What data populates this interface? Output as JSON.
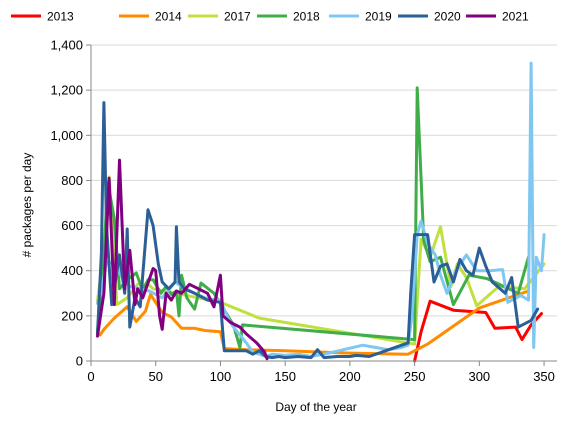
{
  "chart_data": {
    "type": "line",
    "title": "",
    "xlabel": "Day of the year",
    "ylabel": "# packages per day",
    "xlim": [
      0,
      360
    ],
    "ylim": [
      0,
      1400
    ],
    "x_ticks": [
      0,
      50,
      100,
      150,
      200,
      250,
      300,
      350
    ],
    "x_tick_labels": [
      "0",
      "50",
      "100",
      "150",
      "200",
      "250",
      "300",
      "350"
    ],
    "y_ticks": [
      0,
      200,
      400,
      600,
      800,
      1000,
      1200,
      1400
    ],
    "y_tick_labels": [
      "0",
      "200",
      "400",
      "600",
      "800",
      "1,000",
      "1,200",
      "1,400"
    ],
    "grid": "horizontal",
    "legend_position": "top",
    "series": [
      {
        "name": "2013",
        "color": "#ff0000",
        "points": [
          [
            250,
            0
          ],
          [
            255,
            130
          ],
          [
            262,
            265
          ],
          [
            280,
            225
          ],
          [
            305,
            215
          ],
          [
            312,
            145
          ],
          [
            328,
            150
          ],
          [
            333,
            95
          ],
          [
            340,
            160
          ],
          [
            348,
            210
          ]
        ]
      },
      {
        "name": "2014",
        "color": "#ff8c00",
        "points": [
          [
            7,
            115
          ],
          [
            10,
            140
          ],
          [
            18,
            190
          ],
          [
            28,
            240
          ],
          [
            35,
            175
          ],
          [
            42,
            220
          ],
          [
            46,
            295
          ],
          [
            55,
            215
          ],
          [
            62,
            195
          ],
          [
            70,
            145
          ],
          [
            80,
            145
          ],
          [
            88,
            135
          ],
          [
            100,
            130
          ],
          [
            103,
            55
          ],
          [
            120,
            50
          ],
          [
            150,
            45
          ],
          [
            200,
            35
          ],
          [
            245,
            30
          ],
          [
            260,
            75
          ],
          [
            300,
            235
          ],
          [
            338,
            310
          ]
        ]
      },
      {
        "name": "2017",
        "color": "#c0e040",
        "points": [
          [
            5,
            265
          ],
          [
            10,
            500
          ],
          [
            14,
            815
          ],
          [
            20,
            250
          ],
          [
            28,
            280
          ],
          [
            36,
            340
          ],
          [
            44,
            340
          ],
          [
            48,
            320
          ],
          [
            100,
            260
          ],
          [
            130,
            190
          ],
          [
            250,
            75
          ],
          [
            255,
            540
          ],
          [
            262,
            460
          ],
          [
            270,
            595
          ],
          [
            278,
            330
          ],
          [
            283,
            430
          ],
          [
            290,
            370
          ],
          [
            298,
            245
          ],
          [
            315,
            330
          ],
          [
            335,
            320
          ],
          [
            350,
            430
          ]
        ]
      },
      {
        "name": "2018",
        "color": "#3fae49",
        "points": [
          [
            5,
            130
          ],
          [
            10,
            470
          ],
          [
            13,
            790
          ],
          [
            18,
            630
          ],
          [
            22,
            320
          ],
          [
            28,
            360
          ],
          [
            35,
            390
          ],
          [
            40,
            310
          ],
          [
            44,
            360
          ],
          [
            48,
            360
          ],
          [
            54,
            300
          ],
          [
            58,
            330
          ],
          [
            62,
            295
          ],
          [
            66,
            310
          ],
          [
            68,
            200
          ],
          [
            70,
            380
          ],
          [
            74,
            280
          ],
          [
            80,
            230
          ],
          [
            85,
            345
          ],
          [
            95,
            300
          ],
          [
            110,
            160
          ],
          [
            115,
            60
          ],
          [
            117,
            160
          ],
          [
            250,
            95
          ],
          [
            252,
            1210
          ],
          [
            257,
            535
          ],
          [
            262,
            440
          ],
          [
            270,
            460
          ],
          [
            280,
            250
          ],
          [
            292,
            380
          ],
          [
            306,
            365
          ],
          [
            330,
            300
          ],
          [
            338,
            460
          ]
        ]
      },
      {
        "name": "2019",
        "color": "#7fc7f0",
        "points": [
          [
            5,
            255
          ],
          [
            8,
            310
          ],
          [
            12,
            440
          ],
          [
            18,
            430
          ],
          [
            25,
            360
          ],
          [
            30,
            330
          ],
          [
            38,
            320
          ],
          [
            45,
            310
          ],
          [
            55,
            280
          ],
          [
            65,
            350
          ],
          [
            70,
            330
          ],
          [
            80,
            300
          ],
          [
            90,
            275
          ],
          [
            100,
            270
          ],
          [
            105,
            200
          ],
          [
            110,
            150
          ],
          [
            120,
            80
          ],
          [
            125,
            40
          ],
          [
            130,
            30
          ],
          [
            135,
            20
          ],
          [
            140,
            30
          ],
          [
            150,
            25
          ],
          [
            160,
            30
          ],
          [
            170,
            20
          ],
          [
            180,
            30
          ],
          [
            195,
            50
          ],
          [
            210,
            70
          ],
          [
            220,
            60
          ],
          [
            230,
            50
          ],
          [
            240,
            60
          ],
          [
            245,
            70
          ],
          [
            248,
            200
          ],
          [
            252,
            560
          ],
          [
            255,
            620
          ],
          [
            260,
            520
          ],
          [
            266,
            470
          ],
          [
            270,
            380
          ],
          [
            275,
            300
          ],
          [
            282,
            400
          ],
          [
            290,
            470
          ],
          [
            298,
            400
          ],
          [
            308,
            400
          ],
          [
            318,
            405
          ],
          [
            322,
            260
          ],
          [
            332,
            290
          ],
          [
            338,
            270
          ],
          [
            340,
            1320
          ],
          [
            342,
            60
          ],
          [
            344,
            460
          ],
          [
            348,
            400
          ],
          [
            350,
            560
          ]
        ]
      },
      {
        "name": "2020",
        "color": "#2b5f97",
        "points": [
          [
            5,
            120
          ],
          [
            8,
            480
          ],
          [
            10,
            1145
          ],
          [
            12,
            600
          ],
          [
            16,
            250
          ],
          [
            22,
            470
          ],
          [
            26,
            300
          ],
          [
            28,
            585
          ],
          [
            30,
            150
          ],
          [
            34,
            280
          ],
          [
            38,
            240
          ],
          [
            44,
            670
          ],
          [
            48,
            600
          ],
          [
            52,
            430
          ],
          [
            55,
            350
          ],
          [
            60,
            320
          ],
          [
            65,
            350
          ],
          [
            66,
            595
          ],
          [
            68,
            350
          ],
          [
            72,
            320
          ],
          [
            80,
            300
          ],
          [
            90,
            270
          ],
          [
            100,
            260
          ],
          [
            103,
            45
          ],
          [
            120,
            45
          ],
          [
            125,
            30
          ],
          [
            130,
            45
          ],
          [
            135,
            20
          ],
          [
            140,
            15
          ],
          [
            145,
            20
          ],
          [
            150,
            15
          ],
          [
            160,
            20
          ],
          [
            170,
            15
          ],
          [
            175,
            50
          ],
          [
            180,
            15
          ],
          [
            190,
            20
          ],
          [
            200,
            20
          ],
          [
            205,
            25
          ],
          [
            215,
            20
          ],
          [
            245,
            80
          ],
          [
            247,
            300
          ],
          [
            250,
            560
          ],
          [
            260,
            560
          ],
          [
            265,
            350
          ],
          [
            270,
            420
          ],
          [
            275,
            430
          ],
          [
            280,
            350
          ],
          [
            285,
            450
          ],
          [
            290,
            400
          ],
          [
            295,
            380
          ],
          [
            300,
            500
          ],
          [
            305,
            420
          ],
          [
            310,
            350
          ],
          [
            320,
            300
          ],
          [
            325,
            370
          ],
          [
            330,
            150
          ],
          [
            340,
            180
          ],
          [
            345,
            230
          ]
        ]
      },
      {
        "name": "2021",
        "color": "#800080",
        "points": [
          [
            5,
            110
          ],
          [
            10,
            300
          ],
          [
            14,
            810
          ],
          [
            18,
            250
          ],
          [
            22,
            890
          ],
          [
            26,
            320
          ],
          [
            30,
            490
          ],
          [
            34,
            250
          ],
          [
            36,
            320
          ],
          [
            40,
            280
          ],
          [
            48,
            410
          ],
          [
            50,
            400
          ],
          [
            53,
            200
          ],
          [
            55,
            140
          ],
          [
            58,
            300
          ],
          [
            62,
            270
          ],
          [
            66,
            310
          ],
          [
            70,
            300
          ],
          [
            76,
            340
          ],
          [
            90,
            300
          ],
          [
            95,
            240
          ],
          [
            100,
            380
          ],
          [
            102,
            200
          ],
          [
            108,
            170
          ],
          [
            115,
            150
          ],
          [
            120,
            120
          ],
          [
            128,
            80
          ],
          [
            134,
            40
          ],
          [
            136,
            10
          ]
        ]
      }
    ]
  }
}
